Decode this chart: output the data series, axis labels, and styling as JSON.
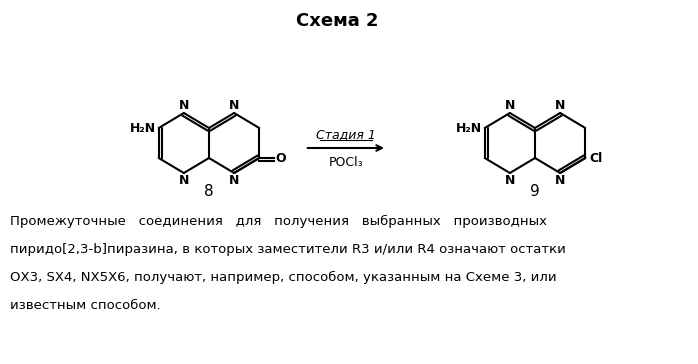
{
  "title": "Схема 2",
  "title_fontsize": 13,
  "title_bold": true,
  "bg_color": "#ffffff",
  "text_color": "#000000",
  "compound8_label": "8",
  "compound9_label": "9",
  "arrow_label_top": "Стадия 1",
  "arrow_label_bottom": "POCl₃",
  "paragraph_lines": [
    "Промежуточные   соединения   для   получения   выбранных   производных",
    "пиридо[2,3-b]пиразина, в которых заместители R3 и/или R4 означают остатки",
    "ОХ3, SX4, NX5X6, получают, например, способом, указанным на Схеме 3, или",
    "известным способом."
  ],
  "figsize": [
    6.98,
    3.64
  ],
  "dpi": 100
}
